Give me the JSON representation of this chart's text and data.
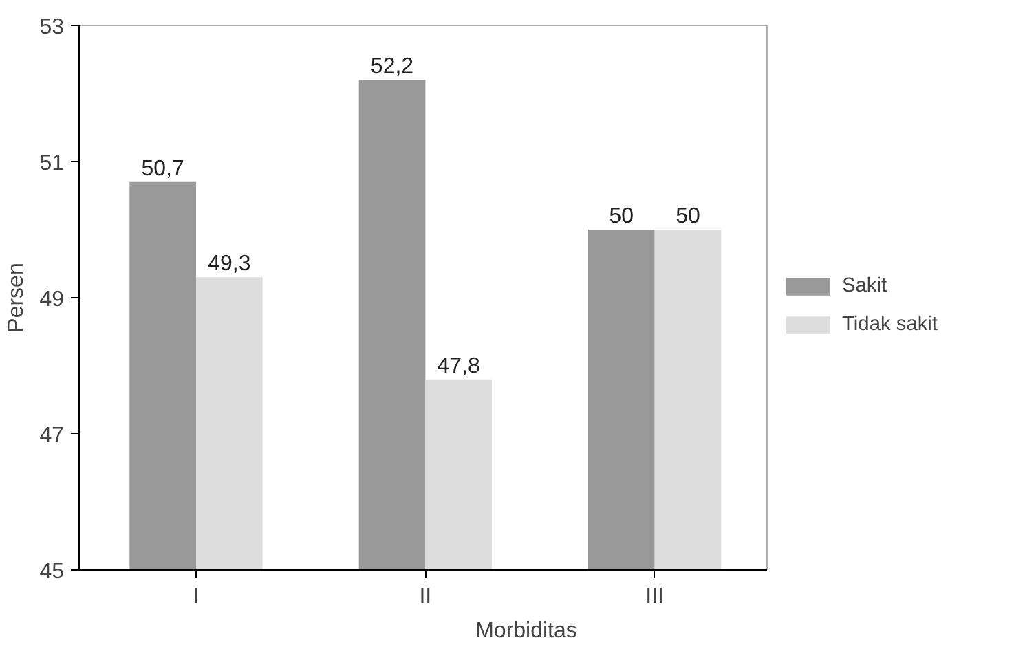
{
  "chart_data": {
    "type": "bar",
    "xlabel": "Morbiditas",
    "ylabel": "Persen",
    "categories": [
      "I",
      "II",
      "III"
    ],
    "series": [
      {
        "name": "Sakit",
        "color": "#999999",
        "values": [
          50.7,
          52.2,
          50
        ],
        "value_labels": [
          "50,7",
          "52,2",
          "50"
        ]
      },
      {
        "name": "Tidak sakit",
        "color": "#dddddd",
        "values": [
          49.3,
          47.8,
          50
        ],
        "value_labels": [
          "49,3",
          "47,8",
          "50"
        ]
      }
    ],
    "ylim": [
      45,
      53
    ],
    "yticks": [
      45,
      47,
      49,
      51,
      53
    ],
    "grid": false,
    "legend": "right"
  }
}
